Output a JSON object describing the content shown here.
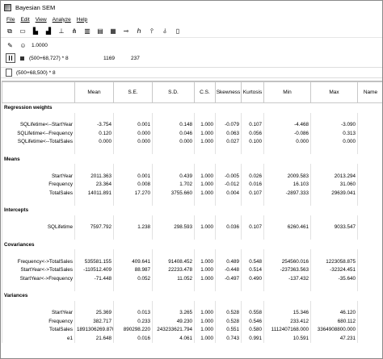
{
  "window": {
    "title": "Bayesian SEM"
  },
  "menu": [
    "File",
    "Edit",
    "View",
    "Analyze",
    "Help"
  ],
  "toolbar_icons": [
    "copy-icon",
    "open-icon",
    "histogram-icon",
    "chart-icon",
    "tree-icon",
    "network-icon",
    "columns-icon",
    "table-icon",
    "grid-icon",
    "key-icon",
    "prior-icon",
    "posterior-icon",
    "chain-icon",
    "book-icon"
  ],
  "controls": {
    "tolerance_value": "1.0000",
    "model_label": "(500+68,727) * 8",
    "samples_count": "1169",
    "accepted_count": "237",
    "file_label": "(500+68,500) * 8"
  },
  "table": {
    "columns": [
      "",
      "Mean",
      "S.E.",
      "S.D.",
      "C.S.",
      "Skewness",
      "Kurtosis",
      "Min",
      "Max",
      "Name"
    ],
    "rows": [
      {
        "type": "section",
        "label": "Regression weights"
      },
      {
        "type": "spacer"
      },
      {
        "type": "data",
        "cells": [
          "SQLifetime<--StartYear",
          "-3.754",
          "0.001",
          "0.148",
          "1.000",
          "-0.079",
          "0.107",
          "-4.468",
          "-3.090",
          ""
        ]
      },
      {
        "type": "data",
        "cells": [
          "SQLifetime<--Frequency",
          "0.120",
          "0.000",
          "0.046",
          "1.000",
          "0.063",
          "0.056",
          "-0.086",
          "0.313",
          ""
        ]
      },
      {
        "type": "data",
        "cells": [
          "SQLifetime<--TotalSales",
          "0.000",
          "0.000",
          "0.000",
          "1.000",
          "0.027",
          "0.100",
          "0.000",
          "0.000",
          ""
        ]
      },
      {
        "type": "spacer"
      },
      {
        "type": "section",
        "label": "Means"
      },
      {
        "type": "spacer"
      },
      {
        "type": "data",
        "cells": [
          "StartYear",
          "2011.363",
          "0.001",
          "0.439",
          "1.000",
          "-0.005",
          "0.026",
          "2009.583",
          "2013.294",
          ""
        ]
      },
      {
        "type": "data",
        "cells": [
          "Frequency",
          "23.364",
          "0.008",
          "1.702",
          "1.000",
          "-0.012",
          "0.016",
          "16.103",
          "31.060",
          ""
        ]
      },
      {
        "type": "data",
        "cells": [
          "TotalSales",
          "14011.891",
          "17.270",
          "3755.660",
          "1.000",
          "0.004",
          "0.107",
          "-2897.333",
          "29639.041",
          ""
        ]
      },
      {
        "type": "spacer"
      },
      {
        "type": "section",
        "label": "Intercepts"
      },
      {
        "type": "spacer"
      },
      {
        "type": "data",
        "cells": [
          "SQLifetime",
          "7597.792",
          "1.238",
          "298.593",
          "1.000",
          "0.036",
          "0.107",
          "6260.461",
          "9033.547",
          ""
        ]
      },
      {
        "type": "spacer"
      },
      {
        "type": "section",
        "label": "Covariances"
      },
      {
        "type": "spacer"
      },
      {
        "type": "data",
        "cells": [
          "Frequency<->TotalSales",
          "535581.155",
          "409.641",
          "91408.452",
          "1.000",
          "0.489",
          "0.548",
          "254560.016",
          "1223058.875",
          ""
        ]
      },
      {
        "type": "data",
        "cells": [
          "StartYear<->TotalSales",
          "-110512.409",
          "88.987",
          "22233.478",
          "1.000",
          "-0.448",
          "0.514",
          "-237363.563",
          "-32324.451",
          ""
        ]
      },
      {
        "type": "data",
        "cells": [
          "StartYear<->Frequency",
          "-71.448",
          "0.052",
          "11.052",
          "1.000",
          "-0.497",
          "0.490",
          "-137.432",
          "-35.640",
          ""
        ]
      },
      {
        "type": "spacer"
      },
      {
        "type": "section",
        "label": "Variances"
      },
      {
        "type": "spacer"
      },
      {
        "type": "data",
        "cells": [
          "StartYear",
          "25.369",
          "0.013",
          "3.265",
          "1.000",
          "0.528",
          "0.558",
          "15.346",
          "46.120",
          ""
        ]
      },
      {
        "type": "data",
        "cells": [
          "Frequency",
          "382.717",
          "0.233",
          "49.230",
          "1.000",
          "0.528",
          "0.546",
          "233.412",
          "680.112",
          ""
        ]
      },
      {
        "type": "data",
        "cells": [
          "TotalSales",
          "1891306269.870",
          "890298.220",
          "243233621.794",
          "1.000",
          "0.551",
          "0.580",
          "1112407168.000",
          "3364908800.000",
          ""
        ]
      },
      {
        "type": "data",
        "cells": [
          "e1",
          "21.648",
          "0.016",
          "4.061",
          "1.000",
          "0.743",
          "0.991",
          "10.591",
          "47.231",
          ""
        ]
      }
    ]
  }
}
